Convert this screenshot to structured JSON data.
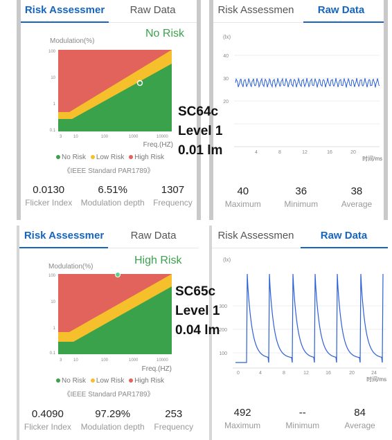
{
  "colors": {
    "accent": "#1565c0",
    "no_risk": "#3aa24a",
    "low_risk": "#f5c02c",
    "high_risk": "#e2635b"
  },
  "panels": [
    {
      "id": "tl",
      "tabs": [
        {
          "label": "Risk Assessmer",
          "active": true
        },
        {
          "label": "Raw Data",
          "active": false
        }
      ],
      "status": "No Risk",
      "ylabel": "Modulation(%)",
      "xlabel": "Freq.(HZ)",
      "yticks": [
        "100",
        "10",
        "1",
        "0.1"
      ],
      "xticks": [
        "3",
        "10",
        "100",
        "1000",
        "10000"
      ],
      "legend": [
        {
          "label": "No Risk",
          "color": "#3aa24a"
        },
        {
          "label": "Low Risk",
          "color": "#f5c02c"
        },
        {
          "label": "High Risk",
          "color": "#e2635b"
        }
      ],
      "standard": "《IEEE Standard PAR1789》",
      "stats": [
        {
          "value": "0.0130",
          "label": "Flicker Index"
        },
        {
          "value": "6.51%",
          "label": "Modulation depth"
        },
        {
          "value": "1307",
          "label": "Frequency"
        }
      ]
    },
    {
      "id": "tr",
      "tabs": [
        {
          "label": "Risk Assessmen",
          "active": false
        },
        {
          "label": "Raw Data",
          "active": true
        }
      ],
      "unit": "(lx)",
      "yticks": [
        "40",
        "30",
        "20"
      ],
      "xticks": [
        "4",
        "8",
        "12",
        "16",
        "20"
      ],
      "xunit": "时间/ms",
      "stats": [
        {
          "value": "40",
          "label": "Maximum"
        },
        {
          "value": "36",
          "label": "Minimum"
        },
        {
          "value": "38",
          "label": "Average"
        }
      ]
    },
    {
      "id": "bl",
      "tabs": [
        {
          "label": "Risk Assessmer",
          "active": true
        },
        {
          "label": "Raw Data",
          "active": false
        }
      ],
      "status": "High Risk",
      "ylabel": "Modulation(%)",
      "xlabel": "Freq.(HZ)",
      "yticks": [
        "100",
        "10",
        "1",
        "0.1"
      ],
      "xticks": [
        "3",
        "10",
        "100",
        "1000",
        "10000"
      ],
      "legend": [
        {
          "label": "No Risk",
          "color": "#3aa24a"
        },
        {
          "label": "Low Risk",
          "color": "#f5c02c"
        },
        {
          "label": "High Risk",
          "color": "#e2635b"
        }
      ],
      "standard": "《IEEE Standard PAR1789》",
      "stats": [
        {
          "value": "0.4090",
          "label": "Flicker Index"
        },
        {
          "value": "97.29%",
          "label": "Modulation depth"
        },
        {
          "value": "253",
          "label": "Frequency"
        }
      ]
    },
    {
      "id": "br",
      "tabs": [
        {
          "label": "Risk Assessmen",
          "active": false
        },
        {
          "label": "Raw Data",
          "active": true
        }
      ],
      "unit": "(lx)",
      "yticks": [
        "300",
        "200",
        "100"
      ],
      "xticks": [
        "0",
        "4",
        "8",
        "12",
        "16",
        "20",
        "24"
      ],
      "xunit": "时间/ms",
      "stats": [
        {
          "value": "492",
          "label": "Maximum"
        },
        {
          "value": "--",
          "label": "Minimum"
        },
        {
          "value": "84",
          "label": "Average"
        }
      ]
    }
  ],
  "overlays": [
    {
      "lines": [
        "SC64c",
        "Level 1",
        "0.01 lm"
      ]
    },
    {
      "lines": [
        "SC65c",
        "Level 1",
        "0.04 lm"
      ]
    }
  ],
  "chart_data": [
    {
      "type": "scatter",
      "title": "",
      "xlabel": "Freq.(HZ)",
      "ylabel": "Modulation(%)",
      "x_scale": "log",
      "y_scale": "log",
      "xlim": [
        3,
        10000
      ],
      "ylim": [
        0.1,
        100
      ],
      "points": [
        {
          "x": 1307,
          "y": 6.51
        }
      ]
    },
    {
      "type": "line",
      "xlabel": "时间/ms",
      "ylabel": "(lx)",
      "ylim": [
        10,
        45
      ],
      "xlim": [
        0,
        22
      ],
      "series": [
        {
          "values_range": [
            36,
            40
          ],
          "average": 38
        }
      ]
    },
    {
      "type": "scatter",
      "title": "",
      "xlabel": "Freq.(HZ)",
      "ylabel": "Modulation(%)",
      "x_scale": "log",
      "y_scale": "log",
      "xlim": [
        3,
        10000
      ],
      "ylim": [
        0.1,
        100
      ],
      "points": [
        {
          "x": 253,
          "y": 97.29
        }
      ]
    },
    {
      "type": "line",
      "xlabel": "时间/ms",
      "ylabel": "(lx)",
      "ylim": [
        0,
        400
      ],
      "xlim": [
        0,
        26
      ],
      "series": [
        {
          "max": 492,
          "average": 84
        }
      ]
    }
  ]
}
